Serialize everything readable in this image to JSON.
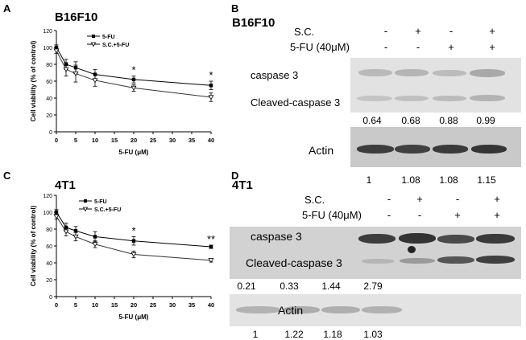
{
  "panels": {
    "a": {
      "letter": "A",
      "title": "B16F10"
    },
    "b": {
      "letter": "B",
      "title": "B16F10"
    },
    "c": {
      "letter": "C",
      "title": "4T1"
    },
    "d": {
      "letter": "D",
      "title": "4T1"
    }
  },
  "chart_data": [
    {
      "type": "line",
      "panel": "A",
      "title": "B16F10",
      "xlabel": "5-FU (μM)",
      "ylabel": "Cell viability (% of control)",
      "xlim": [
        0,
        40
      ],
      "ylim": [
        0,
        120
      ],
      "xticks": [
        0,
        5,
        10,
        15,
        20,
        25,
        30,
        35,
        40
      ],
      "yticks": [
        0,
        20,
        40,
        60,
        80,
        100,
        120
      ],
      "x": [
        0,
        2.5,
        5,
        10,
        20,
        40
      ],
      "series": [
        {
          "name": "5-FU",
          "marker": "filled",
          "values": [
            100,
            80,
            76,
            68,
            62,
            55
          ],
          "errors": [
            3,
            6,
            7,
            6,
            4,
            5
          ]
        },
        {
          "name": "S.C.+5-FU",
          "marker": "open",
          "values": [
            96,
            74,
            69,
            61,
            52,
            41
          ],
          "errors": [
            3,
            8,
            10,
            7,
            4,
            5
          ]
        }
      ],
      "annotations": [
        {
          "x": 20,
          "text": "*"
        },
        {
          "x": 40,
          "text": "*"
        }
      ],
      "legend": "top-right"
    },
    {
      "type": "line",
      "panel": "C",
      "title": "4T1",
      "xlabel": "5-FU (μM)",
      "ylabel": "Cell viability (% of control)",
      "xlim": [
        0,
        40
      ],
      "ylim": [
        0,
        120
      ],
      "xticks": [
        0,
        5,
        10,
        15,
        20,
        25,
        30,
        35,
        40
      ],
      "yticks": [
        0,
        20,
        40,
        60,
        80,
        100,
        120
      ],
      "x": [
        0,
        2.5,
        5,
        10,
        20,
        40
      ],
      "series": [
        {
          "name": "5-FU",
          "marker": "filled",
          "values": [
            100,
            82,
            78,
            71,
            66,
            59
          ],
          "errors": [
            3,
            5,
            5,
            6,
            5,
            2
          ]
        },
        {
          "name": "S.C.+5-FU",
          "marker": "open",
          "values": [
            95,
            77,
            71,
            62,
            50,
            43
          ],
          "errors": [
            3,
            5,
            5,
            4,
            4,
            2
          ]
        }
      ],
      "annotations": [
        {
          "x": 20,
          "text": "*"
        },
        {
          "x": 40,
          "text": "**"
        }
      ],
      "legend": "top-right"
    }
  ],
  "blots": {
    "b": {
      "row_labels": [
        "S.C.",
        "5-FU (40μM)"
      ],
      "sc_signs": [
        "-",
        "+",
        "-",
        "+"
      ],
      "fu_signs": [
        "-",
        "-",
        "+",
        "+"
      ],
      "caspase_label": "caspase 3",
      "cleaved_label": "Cleaved-caspase 3",
      "ratios": [
        "0.64",
        "0.68",
        "0.88",
        "0.99"
      ],
      "actin_label": "Actin",
      "actin_ratios": [
        "1",
        "1.08",
        "1.08",
        "1.15"
      ]
    },
    "d": {
      "row_labels": [
        "S.C.",
        "5-FU (40μM)"
      ],
      "sc_signs": [
        "-",
        "+",
        "-",
        "+"
      ],
      "fu_signs": [
        "-",
        "-",
        "+",
        "+"
      ],
      "caspase_label": "caspase 3",
      "cleaved_label": "Cleaved-caspase 3",
      "ratios": [
        "0.21",
        "0.33",
        "1.44",
        "2.79"
      ],
      "actin_label": "Actin",
      "actin_ratios": [
        "1",
        "1.22",
        "1.18",
        "1.03"
      ]
    }
  }
}
